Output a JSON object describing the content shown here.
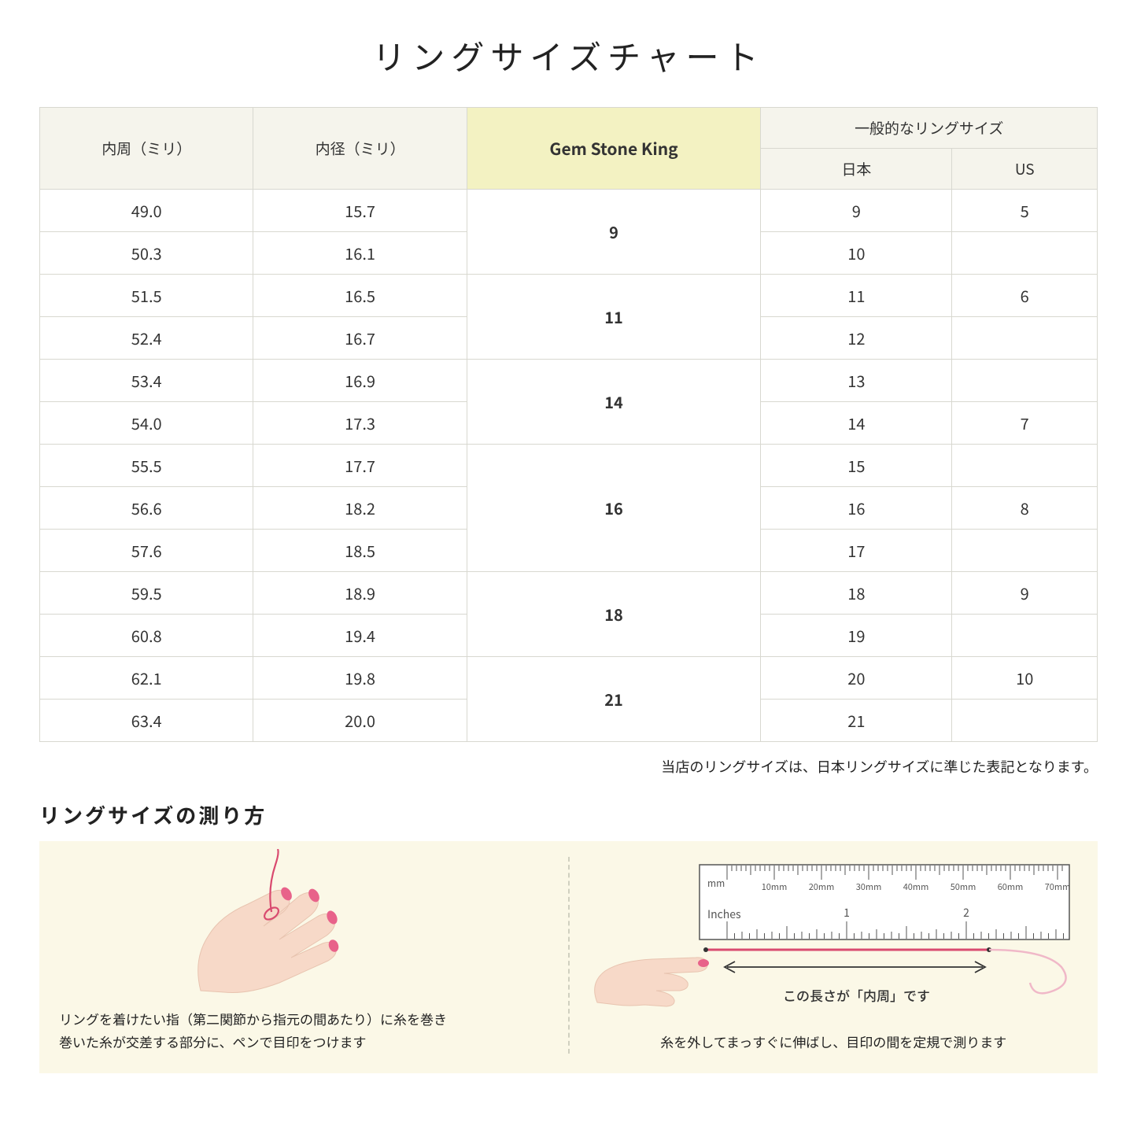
{
  "title": "リングサイズチャート",
  "headers": {
    "circumference": "内周（ミリ）",
    "diameter": "内径（ミリ）",
    "gsk": "Gem Stone King",
    "general": "一般的なリングサイズ",
    "japan": "日本",
    "us": "US"
  },
  "groups": [
    {
      "gsk": "9",
      "rows": [
        {
          "circ": "49.0",
          "dia": "15.7",
          "jp": "9",
          "us": "5"
        },
        {
          "circ": "50.3",
          "dia": "16.1",
          "jp": "10",
          "us": ""
        }
      ]
    },
    {
      "gsk": "11",
      "rows": [
        {
          "circ": "51.5",
          "dia": "16.5",
          "jp": "11",
          "us": "6"
        },
        {
          "circ": "52.4",
          "dia": "16.7",
          "jp": "12",
          "us": ""
        }
      ]
    },
    {
      "gsk": "14",
      "rows": [
        {
          "circ": "53.4",
          "dia": "16.9",
          "jp": "13",
          "us": ""
        },
        {
          "circ": "54.0",
          "dia": "17.3",
          "jp": "14",
          "us": "7"
        }
      ]
    },
    {
      "gsk": "16",
      "rows": [
        {
          "circ": "55.5",
          "dia": "17.7",
          "jp": "15",
          "us": ""
        },
        {
          "circ": "56.6",
          "dia": "18.2",
          "jp": "16",
          "us": "8"
        },
        {
          "circ": "57.6",
          "dia": "18.5",
          "jp": "17",
          "us": ""
        }
      ]
    },
    {
      "gsk": "18",
      "rows": [
        {
          "circ": "59.5",
          "dia": "18.9",
          "jp": "18",
          "us": "9"
        },
        {
          "circ": "60.8",
          "dia": "19.4",
          "jp": "19",
          "us": ""
        }
      ]
    },
    {
      "gsk": "21",
      "rows": [
        {
          "circ": "62.1",
          "dia": "19.8",
          "jp": "20",
          "us": "10"
        },
        {
          "circ": "63.4",
          "dia": "20.0",
          "jp": "21",
          "us": ""
        }
      ]
    }
  ],
  "note": "当店のリングサイズは、日本リングサイズに準じた表記となります。",
  "measure_title": "リングサイズの測り方",
  "step1": "リングを着けたい指（第二関節から指元の間あたり）に糸を巻き\n巻いた糸が交差する部分に、ペンで目印をつけます",
  "step2": "糸を外してまっすぐに伸ばし、目印の間を定規で測ります",
  "ruler_caption": "この長さが「内周」です",
  "ruler": {
    "mm_label": "mm",
    "inches_label": "Inches",
    "mm_ticks": [
      "10mm",
      "20mm",
      "30mm",
      "40mm",
      "50mm",
      "60mm",
      "70mm"
    ],
    "inch_ticks": [
      "1",
      "2"
    ]
  },
  "colors": {
    "header_bg": "#f5f4ec",
    "highlight_bg": "#f3f2c2",
    "border": "#d8d8d0",
    "panel_bg": "#fbf8e7",
    "skin": "#f7d9c8",
    "nail": "#e8628a",
    "thread": "#d94a6f"
  }
}
